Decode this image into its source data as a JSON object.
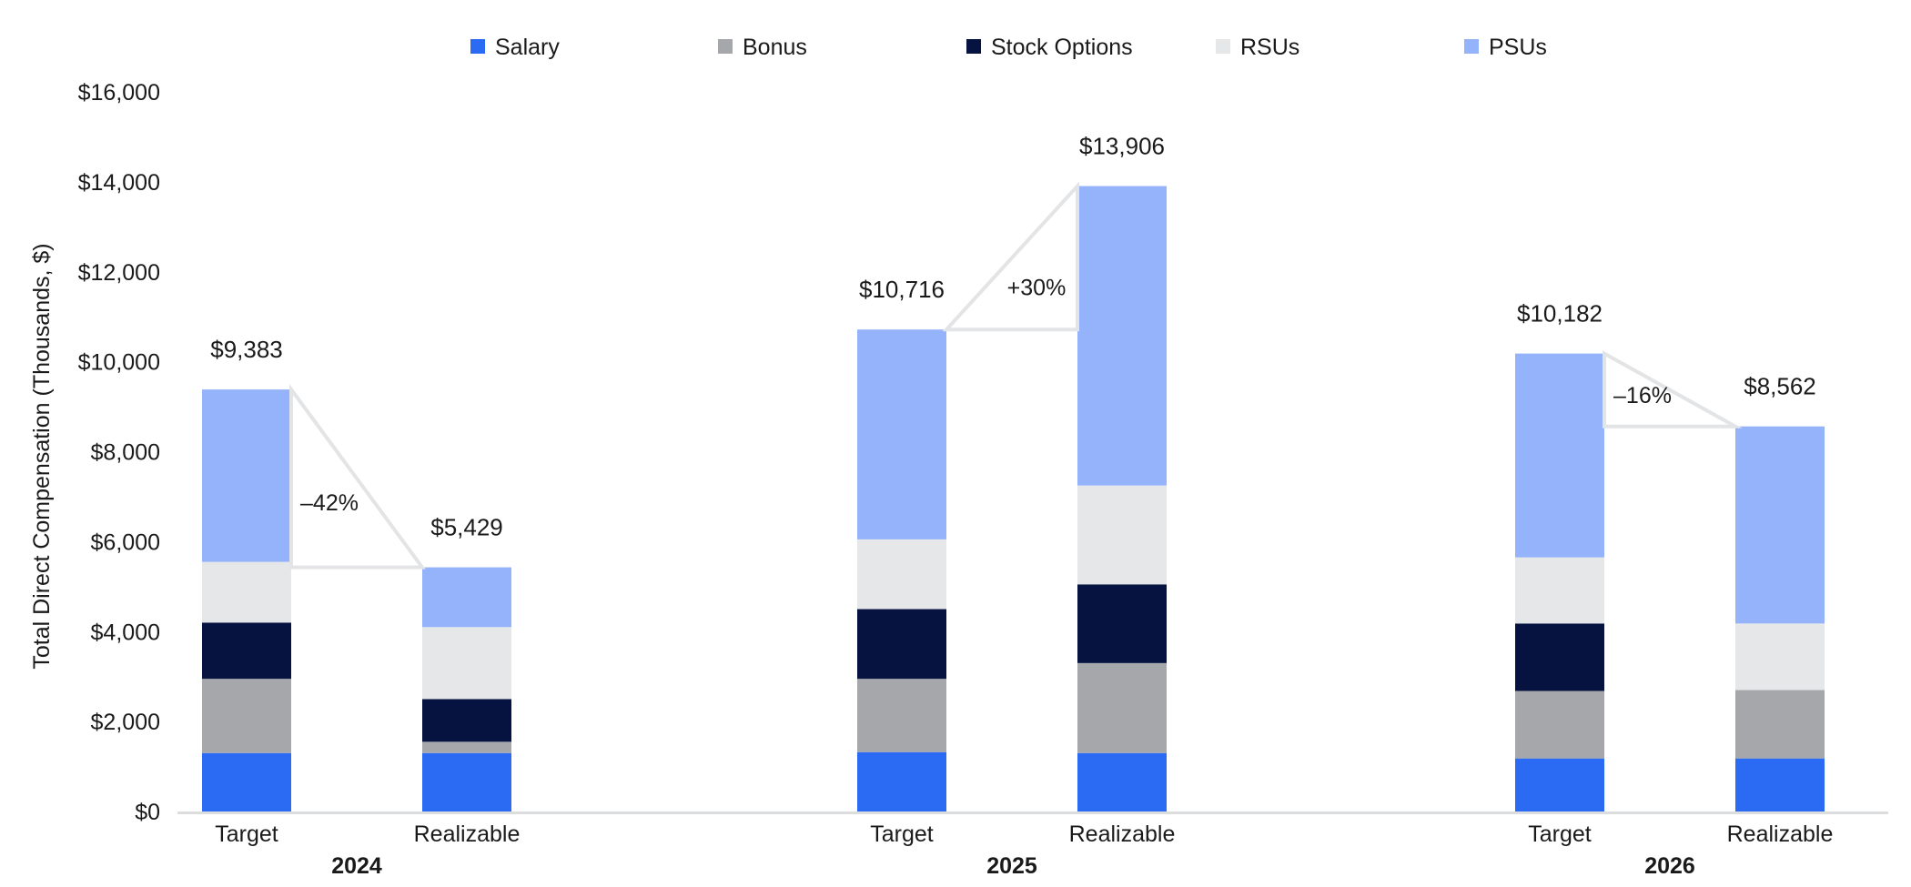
{
  "chart_data": {
    "type": "bar",
    "stacked": true,
    "ylabel": "Total Direct Compensation (Thousands, $)",
    "ylim": [
      0,
      16000
    ],
    "yticks": [
      0,
      2000,
      4000,
      6000,
      8000,
      10000,
      12000,
      14000,
      16000
    ],
    "ytick_labels": [
      "$0",
      "$2,000",
      "$4,000",
      "$6,000",
      "$8,000",
      "$10,000",
      "$12,000",
      "$14,000",
      "$16,000"
    ],
    "legend_position": "top",
    "grid": false,
    "series": [
      {
        "name": "Salary",
        "color": "#2b6bf3"
      },
      {
        "name": "Bonus",
        "color": "#a6a7ab"
      },
      {
        "name": "Stock Options",
        "color": "#061340"
      },
      {
        "name": "RSUs",
        "color": "#e6e7e9"
      },
      {
        "name": "PSUs",
        "color": "#95b3fa"
      }
    ],
    "groups": [
      {
        "label": "2024",
        "bars": [
          {
            "label": "Target",
            "segments": [
              1300,
              1650,
              1250,
              1350,
              3833
            ],
            "total_label": "$9,383"
          },
          {
            "label": "Realizable",
            "segments": [
              1300,
              250,
              950,
              1600,
              1329
            ],
            "total_label": "$5,429"
          }
        ],
        "change_label": "–42%"
      },
      {
        "label": "2025",
        "bars": [
          {
            "label": "Target",
            "segments": [
              1320,
              1630,
              1550,
              1550,
              4666
            ],
            "total_label": "$10,716"
          },
          {
            "label": "Realizable",
            "segments": [
              1300,
              2000,
              1750,
              2200,
              6656
            ],
            "total_label": "$13,906"
          }
        ],
        "change_label": "+30%"
      },
      {
        "label": "2026",
        "bars": [
          {
            "label": "Target",
            "segments": [
              1180,
              1500,
              1500,
              1470,
              4532
            ],
            "total_label": "$10,182"
          },
          {
            "label": "Realizable",
            "segments": [
              1180,
              1520,
              0,
              1480,
              4382
            ],
            "total_label": "$8,562"
          }
        ],
        "change_label": "–16%"
      }
    ]
  }
}
